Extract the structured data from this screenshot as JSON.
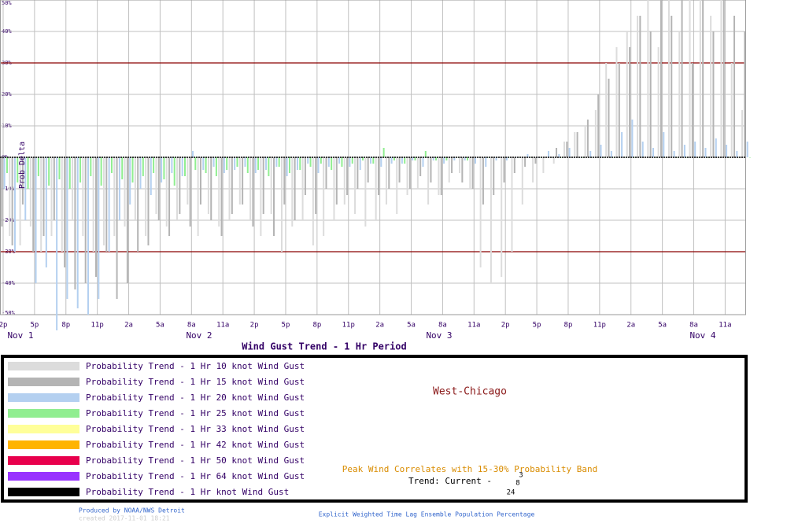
{
  "chart_data": {
    "type": "bar",
    "title": "Wind Gust Trend -  1 Hr Period",
    "y_label": "Prob Delta",
    "xlim": [
      -0.3,
      71
    ],
    "xticks": [
      {
        "value": 0,
        "label": "2p"
      },
      {
        "value": 3,
        "label": "5p"
      },
      {
        "value": 6,
        "label": "8p"
      },
      {
        "value": 9,
        "label": "11p"
      },
      {
        "value": 12,
        "label": "2a"
      },
      {
        "value": 15,
        "label": "5a"
      },
      {
        "value": 18,
        "label": "8a"
      },
      {
        "value": 21,
        "label": "11a"
      },
      {
        "value": 24,
        "label": "2p"
      },
      {
        "value": 27,
        "label": "5p"
      },
      {
        "value": 30,
        "label": "8p"
      },
      {
        "value": 33,
        "label": "11p"
      },
      {
        "value": 36,
        "label": "2a"
      },
      {
        "value": 39,
        "label": "5a"
      },
      {
        "value": 42,
        "label": "8a"
      },
      {
        "value": 45,
        "label": "11a"
      },
      {
        "value": 48,
        "label": "2p"
      },
      {
        "value": 51,
        "label": "5p"
      },
      {
        "value": 54,
        "label": "8p"
      },
      {
        "value": 57,
        "label": "11p"
      },
      {
        "value": 60,
        "label": "2a"
      },
      {
        "value": 63,
        "label": "5a"
      },
      {
        "value": 66,
        "label": "8a"
      },
      {
        "value": 69,
        "label": "11a"
      }
    ],
    "day_labels": [
      "Nov  1",
      "Nov  2",
      "Nov  3",
      "Nov  4"
    ],
    "ylim": [
      -50,
      50
    ],
    "yticks": [
      {
        "value": -50,
        "label": "-50%"
      },
      {
        "value": -40,
        "label": "-40%"
      },
      {
        "value": -30,
        "label": "-30%"
      },
      {
        "value": -20,
        "label": "-20%"
      },
      {
        "value": -10,
        "label": "-10%"
      },
      {
        "value": 0,
        "label": "0%"
      },
      {
        "value": 10,
        "label": "10%"
      },
      {
        "value": 20,
        "label": "20%"
      },
      {
        "value": 30,
        "label": "30%"
      },
      {
        "value": 40,
        "label": "40%"
      },
      {
        "value": 50,
        "label": "50%"
      }
    ],
    "reference_lines": [
      -30,
      30
    ],
    "grid": true,
    "series": [
      {
        "name": "Probability Trend -  1 Hr 10 knot Wind Gust",
        "color": "#dcdcdc",
        "values": [
          -20,
          -25,
          -28,
          -22,
          -30,
          -25,
          -30,
          -20,
          -25,
          -30,
          -28,
          -25,
          -22,
          -20,
          -25,
          -18,
          -22,
          -20,
          -15,
          -25,
          -18,
          -22,
          -20,
          -15,
          -20,
          -25,
          -18,
          -30,
          -22,
          -20,
          -28,
          -25,
          -20,
          -15,
          -18,
          -22,
          -20,
          -15,
          -18,
          -12,
          -10,
          -15,
          -12,
          -8,
          -5,
          -10,
          -35,
          -40,
          -38,
          -30,
          -15,
          -8,
          -5,
          -2,
          5,
          8,
          10,
          15,
          30,
          35,
          40,
          45,
          50,
          35,
          50,
          40,
          50,
          50,
          45,
          50,
          30,
          15
        ]
      },
      {
        "name": "Probability Trend -  1 Hr 15 knot Wind Gust",
        "color": "#b4b4b4",
        "values": [
          -22,
          -28,
          -15,
          -30,
          -25,
          -20,
          -35,
          -42,
          -40,
          -38,
          -30,
          -45,
          -40,
          -30,
          -28,
          -20,
          -25,
          -18,
          -22,
          -15,
          -20,
          -25,
          -18,
          -15,
          -22,
          -18,
          -25,
          -15,
          -20,
          -12,
          -18,
          -10,
          -15,
          -12,
          -10,
          -8,
          -12,
          -10,
          -8,
          -10,
          -6,
          -8,
          -12,
          -5,
          -8,
          -10,
          -15,
          -12,
          -8,
          -5,
          -3,
          -2,
          0,
          3,
          5,
          8,
          12,
          20,
          25,
          30,
          35,
          45,
          40,
          50,
          45,
          50,
          30,
          50,
          40,
          50,
          45,
          40
        ]
      },
      {
        "name": "Probability Trend -  1 Hr 20 knot Wind Gust",
        "color": "#b4d0f0",
        "values": [
          -10,
          -30,
          -20,
          -40,
          -35,
          -55,
          -45,
          -48,
          -50,
          -45,
          -30,
          -20,
          -15,
          -10,
          -12,
          -8,
          -5,
          -6,
          2,
          -4,
          -3,
          -5,
          -4,
          -3,
          -5,
          -4,
          -3,
          -6,
          -4,
          -2,
          -5,
          -3,
          -2,
          -3,
          -4,
          -2,
          -3,
          -2,
          -2,
          -1,
          -3,
          -1,
          -2,
          -1,
          -1,
          -2,
          -3,
          -1,
          -1,
          0,
          1,
          0,
          2,
          1,
          3,
          0,
          2,
          4,
          2,
          8,
          12,
          5,
          3,
          8,
          2,
          4,
          5,
          3,
          6,
          4,
          2,
          5
        ]
      },
      {
        "name": "Probability Trend -  1 Hr 25 knot Wind Gust",
        "color": "#90ee90",
        "values": [
          -5,
          -8,
          -10,
          -6,
          -9,
          -7,
          -10,
          -8,
          -6,
          -9,
          -5,
          -7,
          -8,
          -6,
          -5,
          -7,
          -9,
          -6,
          -4,
          -5,
          -6,
          -4,
          -3,
          -5,
          -4,
          -6,
          -3,
          -5,
          -4,
          -3,
          -2,
          -4,
          -3,
          -2,
          -1,
          -2,
          3,
          -1,
          -2,
          -1,
          2,
          -1,
          -1,
          0,
          -1,
          0,
          0,
          0,
          0,
          0,
          0,
          0,
          0,
          0,
          0,
          0,
          0,
          0,
          0,
          0,
          0,
          0,
          0,
          0,
          0,
          0,
          0,
          0,
          0,
          0,
          0,
          0
        ]
      }
    ],
    "legend_only": [
      {
        "name": "Probability Trend -  1 Hr 33 knot Wind Gust",
        "color": "#ffff99"
      },
      {
        "name": "Probability Trend -  1 Hr 42 knot Wind Gust",
        "color": "#ffb400"
      },
      {
        "name": "Probability Trend -  1 Hr 50 knot Wind Gust",
        "color": "#e8004c"
      },
      {
        "name": "Probability Trend -  1 Hr 64 knot Wind Gust",
        "color": "#9933ff"
      },
      {
        "name": "Probability Trend -  1 Hr  knot Wind Gust",
        "color": "#000000"
      }
    ],
    "location": "West-Chicago",
    "peak_note": "Peak Wind Correlates with 15-30% Probability Band",
    "trend_note": "Trend: Current -",
    "marker_labels": [
      "24",
      "8",
      "3"
    ],
    "credit": "Produced by NOAA/NWS Detroit",
    "created": "created 2017-11-01 18:21",
    "footer": "Explicit Weighted Time Lag Ensemble Population Percentage"
  }
}
